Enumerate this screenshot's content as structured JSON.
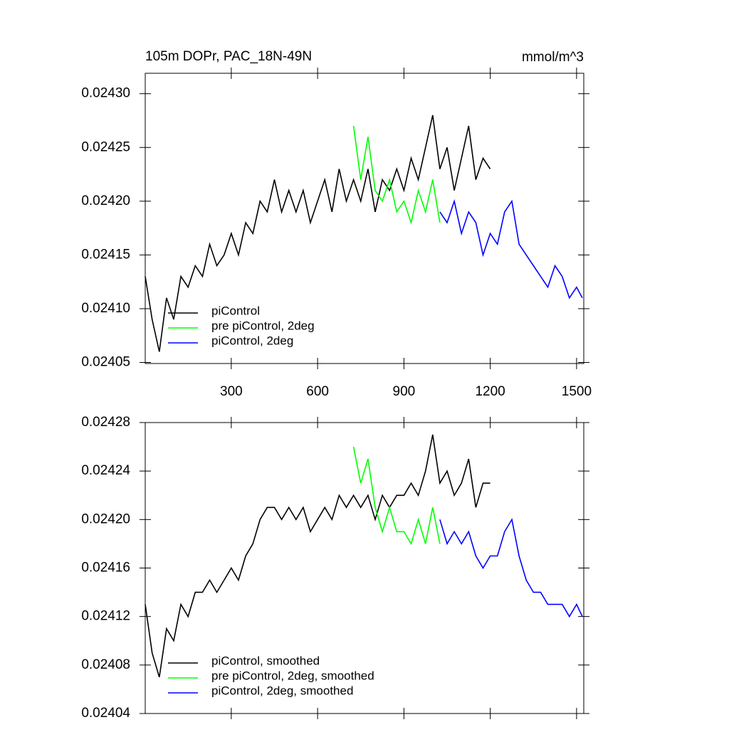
{
  "chart_data": [
    {
      "type": "line",
      "title": "105m DOPr, PAC_18N-49N",
      "units": "mmol/m^3",
      "xlim": [
        1,
        1525
      ],
      "xticks": [
        300,
        600,
        900,
        1200,
        1500
      ],
      "xtick_labels": true,
      "ylim": [
        0.024049,
        0.024319
      ],
      "yticks": [
        {
          "value": 0.02405,
          "label": "0.02405"
        },
        {
          "value": 0.0241,
          "label": "0.02410"
        },
        {
          "value": 0.02415,
          "label": "0.02415"
        },
        {
          "value": 0.0242,
          "label": "0.02420"
        },
        {
          "value": 0.02425,
          "label": "0.02425"
        },
        {
          "value": 0.0243,
          "label": "0.02430"
        }
      ],
      "legend": "lower left",
      "series": [
        {
          "name": "piControl",
          "color": "#000000",
          "x": [
            1,
            25,
            50,
            75,
            100,
            125,
            150,
            175,
            200,
            225,
            250,
            275,
            300,
            325,
            350,
            375,
            400,
            425,
            450,
            475,
            500,
            525,
            550,
            575,
            600,
            625,
            650,
            675,
            700,
            725,
            750,
            775,
            800,
            825,
            850,
            875,
            900,
            925,
            950,
            975,
            1000,
            1025,
            1050,
            1075,
            1100,
            1125,
            1150,
            1175,
            1200
          ],
          "values": [
            0.02413,
            0.02409,
            0.02406,
            0.02411,
            0.02409,
            0.02413,
            0.02412,
            0.02414,
            0.02413,
            0.02416,
            0.02414,
            0.02415,
            0.02417,
            0.02415,
            0.02418,
            0.02417,
            0.0242,
            0.02419,
            0.02422,
            0.02419,
            0.02421,
            0.02419,
            0.02421,
            0.02418,
            0.0242,
            0.02422,
            0.02419,
            0.02423,
            0.0242,
            0.02422,
            0.0242,
            0.02423,
            0.02419,
            0.02422,
            0.02421,
            0.02423,
            0.02421,
            0.02424,
            0.02422,
            0.02425,
            0.02428,
            0.02423,
            0.02425,
            0.02421,
            0.02424,
            0.02427,
            0.02422,
            0.02424,
            0.02423
          ]
        },
        {
          "name": "pre piControl, 2deg",
          "color": "#00ff00",
          "x": [
            725,
            750,
            775,
            800,
            825,
            850,
            875,
            900,
            925,
            950,
            975,
            1000,
            1025
          ],
          "values": [
            0.02427,
            0.02422,
            0.02426,
            0.02421,
            0.0242,
            0.02422,
            0.02419,
            0.0242,
            0.02418,
            0.02421,
            0.02419,
            0.02422,
            0.02418
          ]
        },
        {
          "name": "piControl, 2deg",
          "color": "#0000ff",
          "x": [
            1025,
            1050,
            1075,
            1100,
            1125,
            1150,
            1175,
            1200,
            1225,
            1250,
            1275,
            1300,
            1325,
            1350,
            1375,
            1400,
            1425,
            1450,
            1475,
            1500,
            1520
          ],
          "values": [
            0.02419,
            0.02418,
            0.0242,
            0.02417,
            0.02419,
            0.02418,
            0.02415,
            0.02417,
            0.02416,
            0.02419,
            0.0242,
            0.02416,
            0.02415,
            0.02414,
            0.02413,
            0.02412,
            0.02414,
            0.02413,
            0.02411,
            0.02412,
            0.02411
          ]
        }
      ]
    },
    {
      "type": "line",
      "xlim": [
        1,
        1525
      ],
      "xticks": [
        300,
        600,
        900,
        1200,
        1500
      ],
      "xtick_labels": false,
      "ylim": [
        0.02404,
        0.02428
      ],
      "yticks": [
        {
          "value": 0.02404,
          "label": "0.02404"
        },
        {
          "value": 0.02408,
          "label": "0.02408"
        },
        {
          "value": 0.02412,
          "label": "0.02412"
        },
        {
          "value": 0.02416,
          "label": "0.02416"
        },
        {
          "value": 0.0242,
          "label": "0.02420"
        },
        {
          "value": 0.02424,
          "label": "0.02424"
        },
        {
          "value": 0.02428,
          "label": "0.02428"
        }
      ],
      "legend": "lower left",
      "series": [
        {
          "name": "piControl, smoothed",
          "color": "#000000",
          "x": [
            1,
            25,
            50,
            75,
            100,
            125,
            150,
            175,
            200,
            225,
            250,
            275,
            300,
            325,
            350,
            375,
            400,
            425,
            450,
            475,
            500,
            525,
            550,
            575,
            600,
            625,
            650,
            675,
            700,
            725,
            750,
            775,
            800,
            825,
            850,
            875,
            900,
            925,
            950,
            975,
            1000,
            1025,
            1050,
            1075,
            1100,
            1125,
            1150,
            1175,
            1200
          ],
          "values": [
            0.02413,
            0.02409,
            0.02407,
            0.02411,
            0.0241,
            0.02413,
            0.02412,
            0.02414,
            0.02414,
            0.02415,
            0.02414,
            0.02415,
            0.02416,
            0.02415,
            0.02417,
            0.02418,
            0.0242,
            0.02421,
            0.02421,
            0.0242,
            0.02421,
            0.0242,
            0.02421,
            0.02419,
            0.0242,
            0.02421,
            0.0242,
            0.02422,
            0.02421,
            0.02422,
            0.02421,
            0.02422,
            0.0242,
            0.02422,
            0.02421,
            0.02422,
            0.02422,
            0.02423,
            0.02422,
            0.02424,
            0.02427,
            0.02423,
            0.02424,
            0.02422,
            0.02423,
            0.02425,
            0.02421,
            0.02423,
            0.02423
          ]
        },
        {
          "name": "pre piControl, 2deg, smoothed",
          "color": "#00ff00",
          "x": [
            725,
            750,
            775,
            800,
            825,
            850,
            875,
            900,
            925,
            950,
            975,
            1000,
            1025
          ],
          "values": [
            0.02426,
            0.02423,
            0.02425,
            0.02421,
            0.02419,
            0.02421,
            0.02419,
            0.02419,
            0.02418,
            0.0242,
            0.02418,
            0.02421,
            0.02418
          ]
        },
        {
          "name": "piControl, 2deg, smoothed",
          "color": "#0000ff",
          "x": [
            1025,
            1050,
            1075,
            1100,
            1125,
            1150,
            1175,
            1200,
            1225,
            1250,
            1275,
            1300,
            1325,
            1350,
            1375,
            1400,
            1425,
            1450,
            1475,
            1500,
            1520
          ],
          "values": [
            0.0242,
            0.02418,
            0.02419,
            0.02418,
            0.02419,
            0.02417,
            0.02416,
            0.02417,
            0.02417,
            0.02419,
            0.0242,
            0.02417,
            0.02415,
            0.02414,
            0.02414,
            0.02413,
            0.02413,
            0.02413,
            0.02412,
            0.02413,
            0.02412
          ]
        }
      ]
    }
  ]
}
